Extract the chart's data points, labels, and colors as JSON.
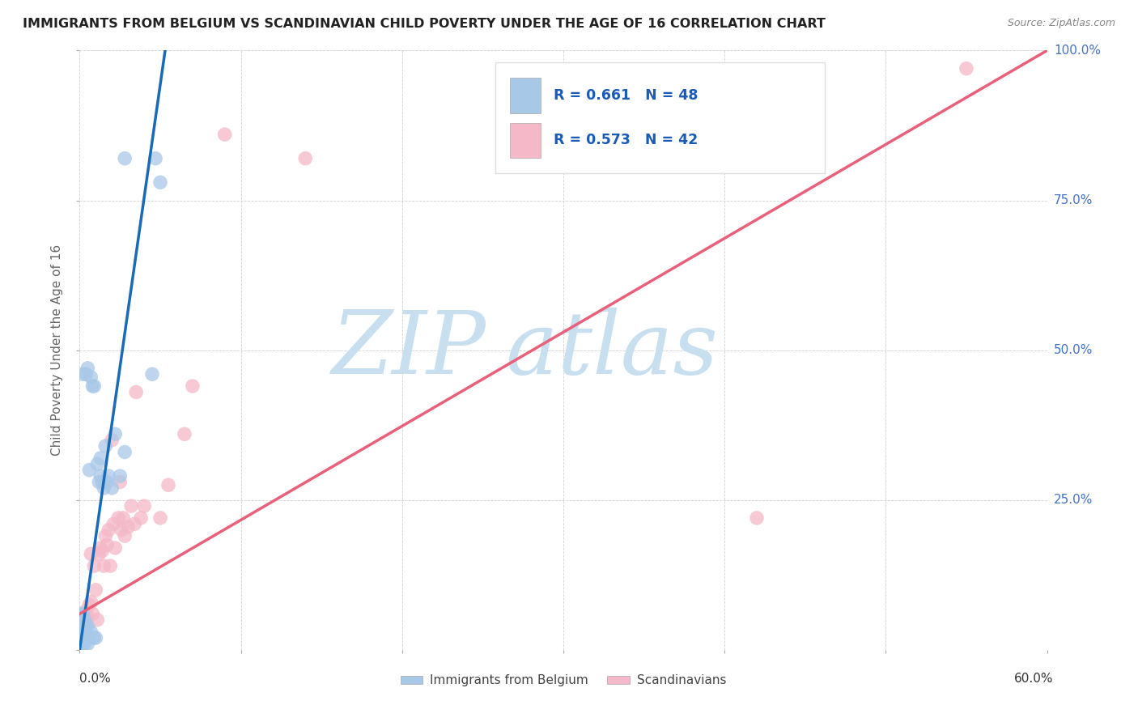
{
  "title": "IMMIGRANTS FROM BELGIUM VS SCANDINAVIAN CHILD POVERTY UNDER THE AGE OF 16 CORRELATION CHART",
  "source": "Source: ZipAtlas.com",
  "ylabel": "Child Poverty Under the Age of 16",
  "legend_labels": [
    "Immigrants from Belgium",
    "Scandinavians"
  ],
  "r_belgium": 0.661,
  "n_belgium": 48,
  "r_scandinavian": 0.573,
  "n_scandinavian": 42,
  "blue_color": "#a8c8e8",
  "pink_color": "#f4b8c8",
  "blue_line_color": "#1a6bb5",
  "pink_line_color": "#e8607a",
  "watermark_zip_color": "#c8dff0",
  "watermark_atlas_color": "#c8dff0",
  "xlim": [
    0,
    0.6
  ],
  "ylim": [
    0,
    1.0
  ],
  "blue_scatter_x": [
    0.0005,
    0.001,
    0.001,
    0.001,
    0.001,
    0.0015,
    0.002,
    0.002,
    0.002,
    0.002,
    0.002,
    0.003,
    0.003,
    0.003,
    0.003,
    0.003,
    0.004,
    0.004,
    0.004,
    0.005,
    0.005,
    0.005,
    0.005,
    0.006,
    0.006,
    0.007,
    0.007,
    0.008,
    0.009,
    0.009,
    0.01,
    0.011,
    0.012,
    0.013,
    0.013,
    0.014,
    0.015,
    0.016,
    0.017,
    0.018,
    0.02,
    0.022,
    0.025,
    0.028,
    0.028,
    0.045,
    0.047,
    0.05
  ],
  "blue_scatter_y": [
    0.02,
    0.0,
    0.01,
    0.03,
    0.06,
    0.02,
    0.01,
    0.02,
    0.04,
    0.06,
    0.46,
    0.01,
    0.015,
    0.02,
    0.035,
    0.05,
    0.02,
    0.04,
    0.46,
    0.01,
    0.02,
    0.04,
    0.47,
    0.02,
    0.3,
    0.03,
    0.455,
    0.44,
    0.02,
    0.44,
    0.02,
    0.31,
    0.28,
    0.29,
    0.32,
    0.28,
    0.27,
    0.34,
    0.28,
    0.29,
    0.27,
    0.36,
    0.29,
    0.33,
    0.82,
    0.46,
    0.82,
    0.78
  ],
  "pink_scatter_x": [
    0.001,
    0.002,
    0.003,
    0.004,
    0.005,
    0.006,
    0.007,
    0.007,
    0.008,
    0.009,
    0.01,
    0.011,
    0.012,
    0.013,
    0.014,
    0.015,
    0.016,
    0.017,
    0.018,
    0.019,
    0.02,
    0.021,
    0.022,
    0.024,
    0.025,
    0.026,
    0.027,
    0.028,
    0.03,
    0.032,
    0.034,
    0.035,
    0.038,
    0.04,
    0.05,
    0.055,
    0.065,
    0.07,
    0.09,
    0.14,
    0.42,
    0.55
  ],
  "pink_scatter_y": [
    0.05,
    0.04,
    0.05,
    0.065,
    0.055,
    0.075,
    0.08,
    0.16,
    0.06,
    0.14,
    0.1,
    0.05,
    0.16,
    0.17,
    0.165,
    0.14,
    0.19,
    0.175,
    0.2,
    0.14,
    0.35,
    0.21,
    0.17,
    0.22,
    0.28,
    0.2,
    0.22,
    0.19,
    0.205,
    0.24,
    0.21,
    0.43,
    0.22,
    0.24,
    0.22,
    0.275,
    0.36,
    0.44,
    0.86,
    0.82,
    0.22,
    0.97
  ],
  "blue_line_x0": 0.0,
  "blue_line_y0": 0.0,
  "blue_line_x1": 0.053,
  "blue_line_y1": 1.0,
  "pink_line_x0": 0.0,
  "pink_line_y0": 0.06,
  "pink_line_x1": 0.6,
  "pink_line_y1": 1.0
}
